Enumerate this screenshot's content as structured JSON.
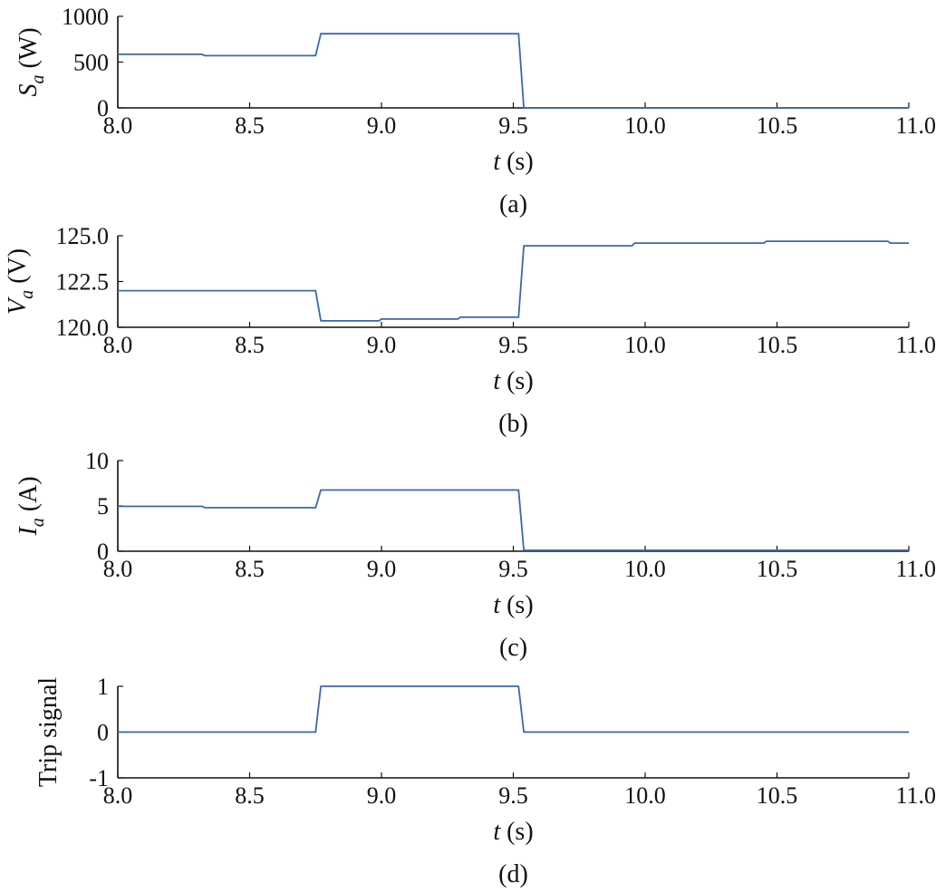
{
  "chart_data": [
    {
      "type": "line",
      "panel_label": "(a)",
      "xlabel": {
        "var": "t",
        "unit": " (s)"
      },
      "ylabel": {
        "var": "S",
        "sub": "a",
        "unit": " (W)"
      },
      "xlim": [
        8.0,
        11.0
      ],
      "ylim": [
        0,
        1000
      ],
      "xticks": [
        8.0,
        8.5,
        9.0,
        9.5,
        10.0,
        10.5,
        11.0
      ],
      "xtick_labels": [
        "8.0",
        "8.5",
        "9.0",
        "9.5",
        "10.0",
        "10.5",
        "11.0"
      ],
      "yticks": [
        0,
        500,
        1000
      ],
      "ytick_labels": [
        "0",
        "500",
        "1000"
      ],
      "grid": false,
      "series": [
        {
          "color": "#3a68ad",
          "x": [
            8.0,
            8.32,
            8.33,
            8.75,
            8.77,
            9.52,
            9.54,
            11.0
          ],
          "y": [
            585,
            585,
            570,
            570,
            810,
            810,
            0,
            0
          ]
        }
      ]
    },
    {
      "type": "line",
      "panel_label": "(b)",
      "xlabel": {
        "var": "t",
        "unit": " (s)"
      },
      "ylabel": {
        "var": "V",
        "sub": "a",
        "unit": " (V)"
      },
      "xlim": [
        8.0,
        11.0
      ],
      "ylim": [
        120.0,
        125.0
      ],
      "xticks": [
        8.0,
        8.5,
        9.0,
        9.5,
        10.0,
        10.5,
        11.0
      ],
      "xtick_labels": [
        "8.0",
        "8.5",
        "9.0",
        "9.5",
        "10.0",
        "10.5",
        "11.0"
      ],
      "yticks": [
        120.0,
        122.5,
        125.0
      ],
      "ytick_labels": [
        "120.0",
        "122.5",
        "125.0"
      ],
      "grid": false,
      "series": [
        {
          "color": "#3a68ad",
          "x": [
            8.0,
            8.75,
            8.77,
            8.99,
            9.0,
            9.29,
            9.3,
            9.52,
            9.54,
            9.95,
            9.96,
            10.45,
            10.46,
            10.92,
            10.93,
            11.0
          ],
          "y": [
            122.0,
            122.0,
            120.35,
            120.35,
            120.45,
            120.45,
            120.55,
            120.55,
            124.45,
            124.45,
            124.6,
            124.6,
            124.7,
            124.7,
            124.6,
            124.6
          ]
        }
      ]
    },
    {
      "type": "line",
      "panel_label": "(c)",
      "xlabel": {
        "var": "t",
        "unit": " (s)"
      },
      "ylabel": {
        "var": "I",
        "sub": "a",
        "unit": " (A)"
      },
      "xlim": [
        8.0,
        11.0
      ],
      "ylim": [
        0,
        10
      ],
      "xticks": [
        8.0,
        8.5,
        9.0,
        9.5,
        10.0,
        10.5,
        11.0
      ],
      "xtick_labels": [
        "8.0",
        "8.5",
        "9.0",
        "9.5",
        "10.0",
        "10.5",
        "11.0"
      ],
      "yticks": [
        0,
        5,
        10
      ],
      "ytick_labels": [
        "0",
        "5",
        "10"
      ],
      "grid": false,
      "series": [
        {
          "color": "#3a68ad",
          "x": [
            8.0,
            8.32,
            8.33,
            8.75,
            8.77,
            9.52,
            9.54,
            11.0
          ],
          "y": [
            4.95,
            4.95,
            4.8,
            4.8,
            6.75,
            6.75,
            0.1,
            0.1
          ]
        }
      ]
    },
    {
      "type": "line",
      "panel_label": "(d)",
      "xlabel": {
        "var": "t",
        "unit": " (s)"
      },
      "ylabel": {
        "var": "",
        "sub": "",
        "unit": "Trip signal"
      },
      "xlim": [
        8.0,
        11.0
      ],
      "ylim": [
        -1,
        1
      ],
      "xticks": [
        8.0,
        8.5,
        9.0,
        9.5,
        10.0,
        10.5,
        11.0
      ],
      "xtick_labels": [
        "8.0",
        "8.5",
        "9.0",
        "9.5",
        "10.0",
        "10.5",
        "11.0"
      ],
      "yticks": [
        -1,
        0,
        1
      ],
      "ytick_labels": [
        "-1",
        "0",
        "1"
      ],
      "grid": false,
      "series": [
        {
          "color": "#3a68ad",
          "x": [
            8.0,
            8.75,
            8.77,
            9.52,
            9.54,
            11.0
          ],
          "y": [
            0,
            0,
            1,
            1,
            0,
            0
          ]
        }
      ]
    }
  ]
}
